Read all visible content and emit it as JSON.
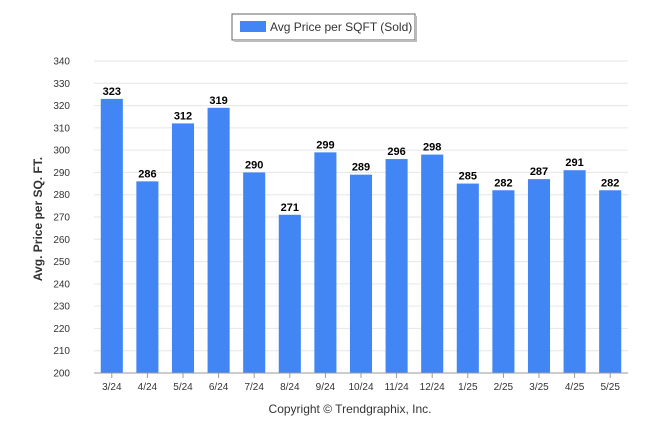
{
  "chart_data": {
    "type": "bar",
    "categories": [
      "3/24",
      "4/24",
      "5/24",
      "6/24",
      "7/24",
      "8/24",
      "9/24",
      "10/24",
      "11/24",
      "12/24",
      "1/25",
      "2/25",
      "3/25",
      "4/25",
      "5/25"
    ],
    "series": [
      {
        "name": "Avg Price per SQFT (Sold)",
        "values": [
          323,
          286,
          312,
          319,
          290,
          271,
          299,
          289,
          296,
          298,
          285,
          282,
          287,
          291,
          282
        ],
        "color": "#4285f4"
      }
    ],
    "ylabel": "Avg. Price per SQ. FT.",
    "ylim": [
      200,
      340
    ],
    "ytick_step": 10,
    "grid": true,
    "legend_position": "top-center",
    "data_labels": true
  },
  "footer": {
    "copyright": "Copyright © Trendgraphix, Inc."
  }
}
